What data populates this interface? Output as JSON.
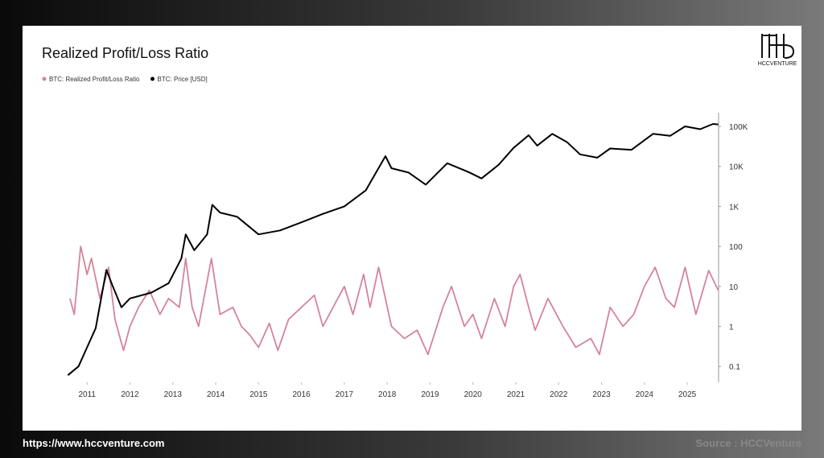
{
  "chart_data": {
    "type": "line",
    "title": "Realized Profit/Loss Ratio",
    "log_scale": true,
    "xlim": [
      2010.47,
      2025.73
    ],
    "xticks": [
      2011,
      2012,
      2013,
      2014,
      2015,
      2016,
      2017,
      2018,
      2019,
      2020,
      2021,
      2022,
      2023,
      2024,
      2025
    ],
    "ylim": [
      0.04,
      220000
    ],
    "yticks": [
      {
        "value": 100000,
        "label": "100K"
      },
      {
        "value": 10000,
        "label": "10K"
      },
      {
        "value": 1000,
        "label": "1K"
      },
      100,
      10,
      1,
      0.1
    ],
    "legend": "top-left",
    "series": [
      {
        "name": "BTC: Realized Profit/Loss Ratio",
        "color": "#d4849a",
        "x": [
          2010.6,
          2010.7,
          2010.85,
          2011.0,
          2011.1,
          2011.3,
          2011.5,
          2011.65,
          2011.85,
          2012.0,
          2012.2,
          2012.45,
          2012.7,
          2012.9,
          2013.15,
          2013.3,
          2013.45,
          2013.6,
          2013.9,
          2014.1,
          2014.4,
          2014.6,
          2014.8,
          2015.0,
          2015.25,
          2015.45,
          2015.7,
          2016.0,
          2016.3,
          2016.5,
          2016.8,
          2017.0,
          2017.2,
          2017.45,
          2017.6,
          2017.8,
          2018.1,
          2018.4,
          2018.7,
          2018.95,
          2019.3,
          2019.5,
          2019.8,
          2020.0,
          2020.2,
          2020.5,
          2020.75,
          2020.95,
          2021.1,
          2021.3,
          2021.45,
          2021.75,
          2021.95,
          2022.1,
          2022.4,
          2022.75,
          2022.95,
          2023.2,
          2023.5,
          2023.75,
          2024.0,
          2024.25,
          2024.5,
          2024.7,
          2024.95,
          2025.2,
          2025.5,
          2025.72
        ],
        "values": [
          5,
          2,
          100,
          20,
          50,
          5,
          30,
          1.5,
          0.25,
          1,
          3,
          8,
          2,
          5,
          3,
          50,
          3,
          1,
          50,
          2,
          3,
          1,
          0.6,
          0.3,
          1.2,
          0.25,
          1.5,
          3,
          6,
          1,
          4,
          10,
          2,
          20,
          3,
          30,
          1,
          0.5,
          0.8,
          0.2,
          3,
          10,
          1,
          2,
          0.5,
          5,
          1,
          10,
          20,
          3,
          0.8,
          5,
          2,
          1,
          0.3,
          0.5,
          0.2,
          3,
          1,
          2,
          10,
          30,
          5,
          3,
          30,
          2,
          25,
          8
        ]
      },
      {
        "name": "BTC: Price [USD]",
        "color": "#000000",
        "x": [
          2010.55,
          2010.8,
          2011.0,
          2011.2,
          2011.45,
          2011.6,
          2011.8,
          2012.0,
          2012.5,
          2012.9,
          2013.2,
          2013.3,
          2013.5,
          2013.8,
          2013.92,
          2014.1,
          2014.5,
          2015.0,
          2015.5,
          2016.0,
          2016.5,
          2017.0,
          2017.5,
          2017.96,
          2018.1,
          2018.5,
          2018.9,
          2019.4,
          2019.9,
          2020.2,
          2020.6,
          2020.95,
          2021.3,
          2021.5,
          2021.85,
          2022.2,
          2022.5,
          2022.9,
          2023.2,
          2023.7,
          2024.2,
          2024.6,
          2024.95,
          2025.3,
          2025.6,
          2025.72
        ],
        "values": [
          0.06,
          0.1,
          0.3,
          0.9,
          26,
          10,
          3,
          5,
          7,
          12,
          50,
          200,
          80,
          200,
          1100,
          700,
          550,
          200,
          250,
          400,
          650,
          1000,
          2500,
          18000,
          9000,
          7000,
          3500,
          12000,
          7200,
          5000,
          11000,
          29000,
          60000,
          33000,
          65000,
          40000,
          20000,
          16500,
          28000,
          26000,
          65000,
          58000,
          100000,
          85000,
          115000,
          112000
        ]
      }
    ]
  },
  "logo": "HCCVENTURE",
  "footer_left": "https://www.hccventure.com",
  "footer_right": "Source : HCCVenture"
}
